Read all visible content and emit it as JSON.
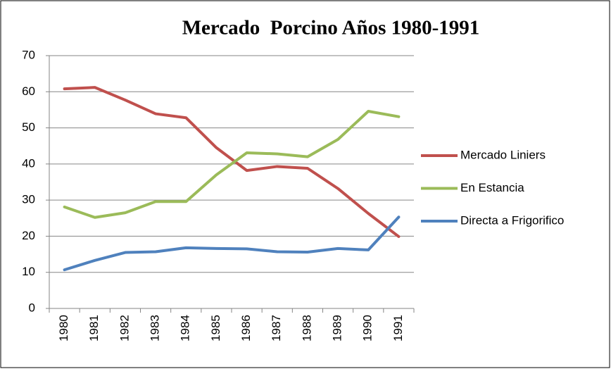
{
  "chart_data": {
    "type": "line",
    "title": "Mercado  Porcino Años 1980-1991",
    "categories": [
      "1980",
      "1981",
      "1982",
      "1983",
      "1984",
      "1985",
      "1986",
      "1987",
      "1988",
      "1989",
      "1990",
      "1991"
    ],
    "series": [
      {
        "name": "Mercado Liniers",
        "color": "#c0504d",
        "values": [
          60.8,
          61.2,
          57.7,
          53.9,
          52.8,
          44.5,
          38.2,
          39.3,
          38.8,
          33.2,
          26.3,
          19.9
        ]
      },
      {
        "name": "En Estancia",
        "color": "#9bbb59",
        "values": [
          28.1,
          25.2,
          26.5,
          29.6,
          29.6,
          37.0,
          43.1,
          42.8,
          42.0,
          46.8,
          54.6,
          53.1
        ]
      },
      {
        "name": "Directa a Frigorifico",
        "color": "#4f81bd",
        "values": [
          10.7,
          13.3,
          15.5,
          15.7,
          16.8,
          16.6,
          16.5,
          15.7,
          15.6,
          16.6,
          16.2,
          25.3
        ]
      }
    ],
    "ylim": [
      0,
      70
    ],
    "yticks": [
      0,
      10,
      20,
      30,
      40,
      50,
      60,
      70
    ],
    "grid": true,
    "legend": "right"
  }
}
